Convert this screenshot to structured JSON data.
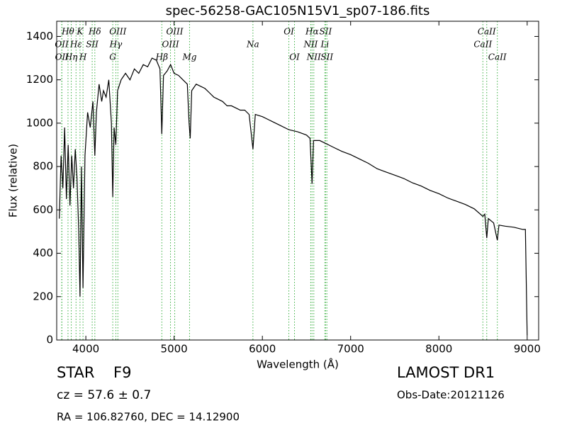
{
  "chart_data": {
    "type": "line",
    "title": "spec-56258-GAC105N15V1_sp07-186.fits",
    "x_label": "Wavelength (Å)",
    "y_label": "Flux (relative)",
    "xlim": [
      3670,
      9130
    ],
    "ylim": [
      0,
      1470
    ],
    "xticks": [
      4000,
      5000,
      6000,
      7000,
      8000,
      9000
    ],
    "yticks": [
      0,
      200,
      400,
      600,
      800,
      1000,
      1200,
      1400
    ],
    "series": [
      {
        "name": "Flux",
        "color": "#000000",
        "x": [
          3700,
          3720,
          3740,
          3760,
          3780,
          3800,
          3820,
          3840,
          3860,
          3880,
          3900,
          3920,
          3934,
          3950,
          3968,
          3990,
          4020,
          4050,
          4080,
          4102,
          4120,
          4150,
          4180,
          4200,
          4230,
          4260,
          4290,
          4305,
          4320,
          4340,
          4360,
          4400,
          4450,
          4500,
          4550,
          4600,
          4650,
          4700,
          4750,
          4800,
          4840,
          4861,
          4880,
          4920,
          4960,
          5000,
          5050,
          5100,
          5150,
          5170,
          5183,
          5200,
          5250,
          5300,
          5350,
          5400,
          5450,
          5500,
          5550,
          5600,
          5650,
          5700,
          5750,
          5800,
          5850,
          5893,
          5920,
          6000,
          6100,
          6200,
          6300,
          6400,
          6500,
          6540,
          6563,
          6580,
          6650,
          6700,
          6800,
          6900,
          7000,
          7100,
          7200,
          7300,
          7400,
          7500,
          7600,
          7700,
          7800,
          7900,
          8000,
          8100,
          8200,
          8300,
          8400,
          8498,
          8520,
          8542,
          8560,
          8620,
          8662,
          8680,
          8750,
          8850,
          8950,
          8980,
          9000
        ],
        "values": [
          560,
          850,
          700,
          980,
          650,
          900,
          620,
          850,
          700,
          880,
          750,
          500,
          200,
          800,
          240,
          850,
          1050,
          980,
          1100,
          850,
          1050,
          1180,
          1100,
          1150,
          1120,
          1200,
          1000,
          660,
          980,
          900,
          1150,
          1200,
          1230,
          1200,
          1250,
          1230,
          1270,
          1260,
          1300,
          1290,
          1250,
          950,
          1220,
          1240,
          1270,
          1230,
          1220,
          1200,
          1180,
          1000,
          930,
          1150,
          1180,
          1170,
          1160,
          1140,
          1120,
          1110,
          1100,
          1080,
          1080,
          1070,
          1060,
          1060,
          1040,
          880,
          1040,
          1030,
          1010,
          990,
          970,
          960,
          945,
          930,
          720,
          920,
          920,
          910,
          890,
          870,
          855,
          835,
          815,
          790,
          775,
          760,
          745,
          725,
          710,
          690,
          675,
          655,
          640,
          625,
          605,
          570,
          580,
          470,
          560,
          540,
          460,
          530,
          525,
          520,
          510,
          510,
          20
        ]
      }
    ],
    "line_color": "#3cb043",
    "line_tiers": [
      [
        {
          "label": "Hθ",
          "x": 3798
        },
        {
          "label": "K",
          "x": 3934
        },
        {
          "label": "Hδ",
          "x": 4102
        },
        {
          "label": "OIII",
          "x": 4363
        },
        {
          "label": "OIII",
          "x": 5007
        },
        {
          "label": "OI",
          "x": 6300
        },
        {
          "label": "Hα",
          "x": 6563
        },
        {
          "label": "SII",
          "x": 6716
        },
        {
          "label": "CaII",
          "x": 8542
        }
      ],
      [
        {
          "label": "OII",
          "x": 3727
        },
        {
          "label": "Hε",
          "x": 3889
        },
        {
          "label": "SII",
          "x": 4072
        },
        {
          "label": "Hγ",
          "x": 4340
        },
        {
          "label": "OIII",
          "x": 4959
        },
        {
          "label": "Na",
          "x": 5893
        },
        {
          "label": "NII",
          "x": 6548
        },
        {
          "label": "Li",
          "x": 6708
        },
        {
          "label": "CaII",
          "x": 8498
        }
      ],
      [
        {
          "label": "OII",
          "x": 3729
        },
        {
          "label": "Hη",
          "x": 3835
        },
        {
          "label": "H",
          "x": 3968
        },
        {
          "label": "G",
          "x": 4305
        },
        {
          "label": "Hβ",
          "x": 4861
        },
        {
          "label": "Mg",
          "x": 5175
        },
        {
          "label": "OI",
          "x": 6364
        },
        {
          "label": "NII",
          "x": 6583
        },
        {
          "label": "SII",
          "x": 6731
        },
        {
          "label": "CaII",
          "x": 8662
        }
      ]
    ]
  },
  "info": {
    "class": "STAR",
    "subclass": "F9",
    "cz": "cz = 57.6 ± 0.7",
    "coords": "RA = 106.82760, DEC = 14.12900",
    "survey": "LAMOST DR1",
    "obs_date": "Obs-Date:20121126"
  }
}
